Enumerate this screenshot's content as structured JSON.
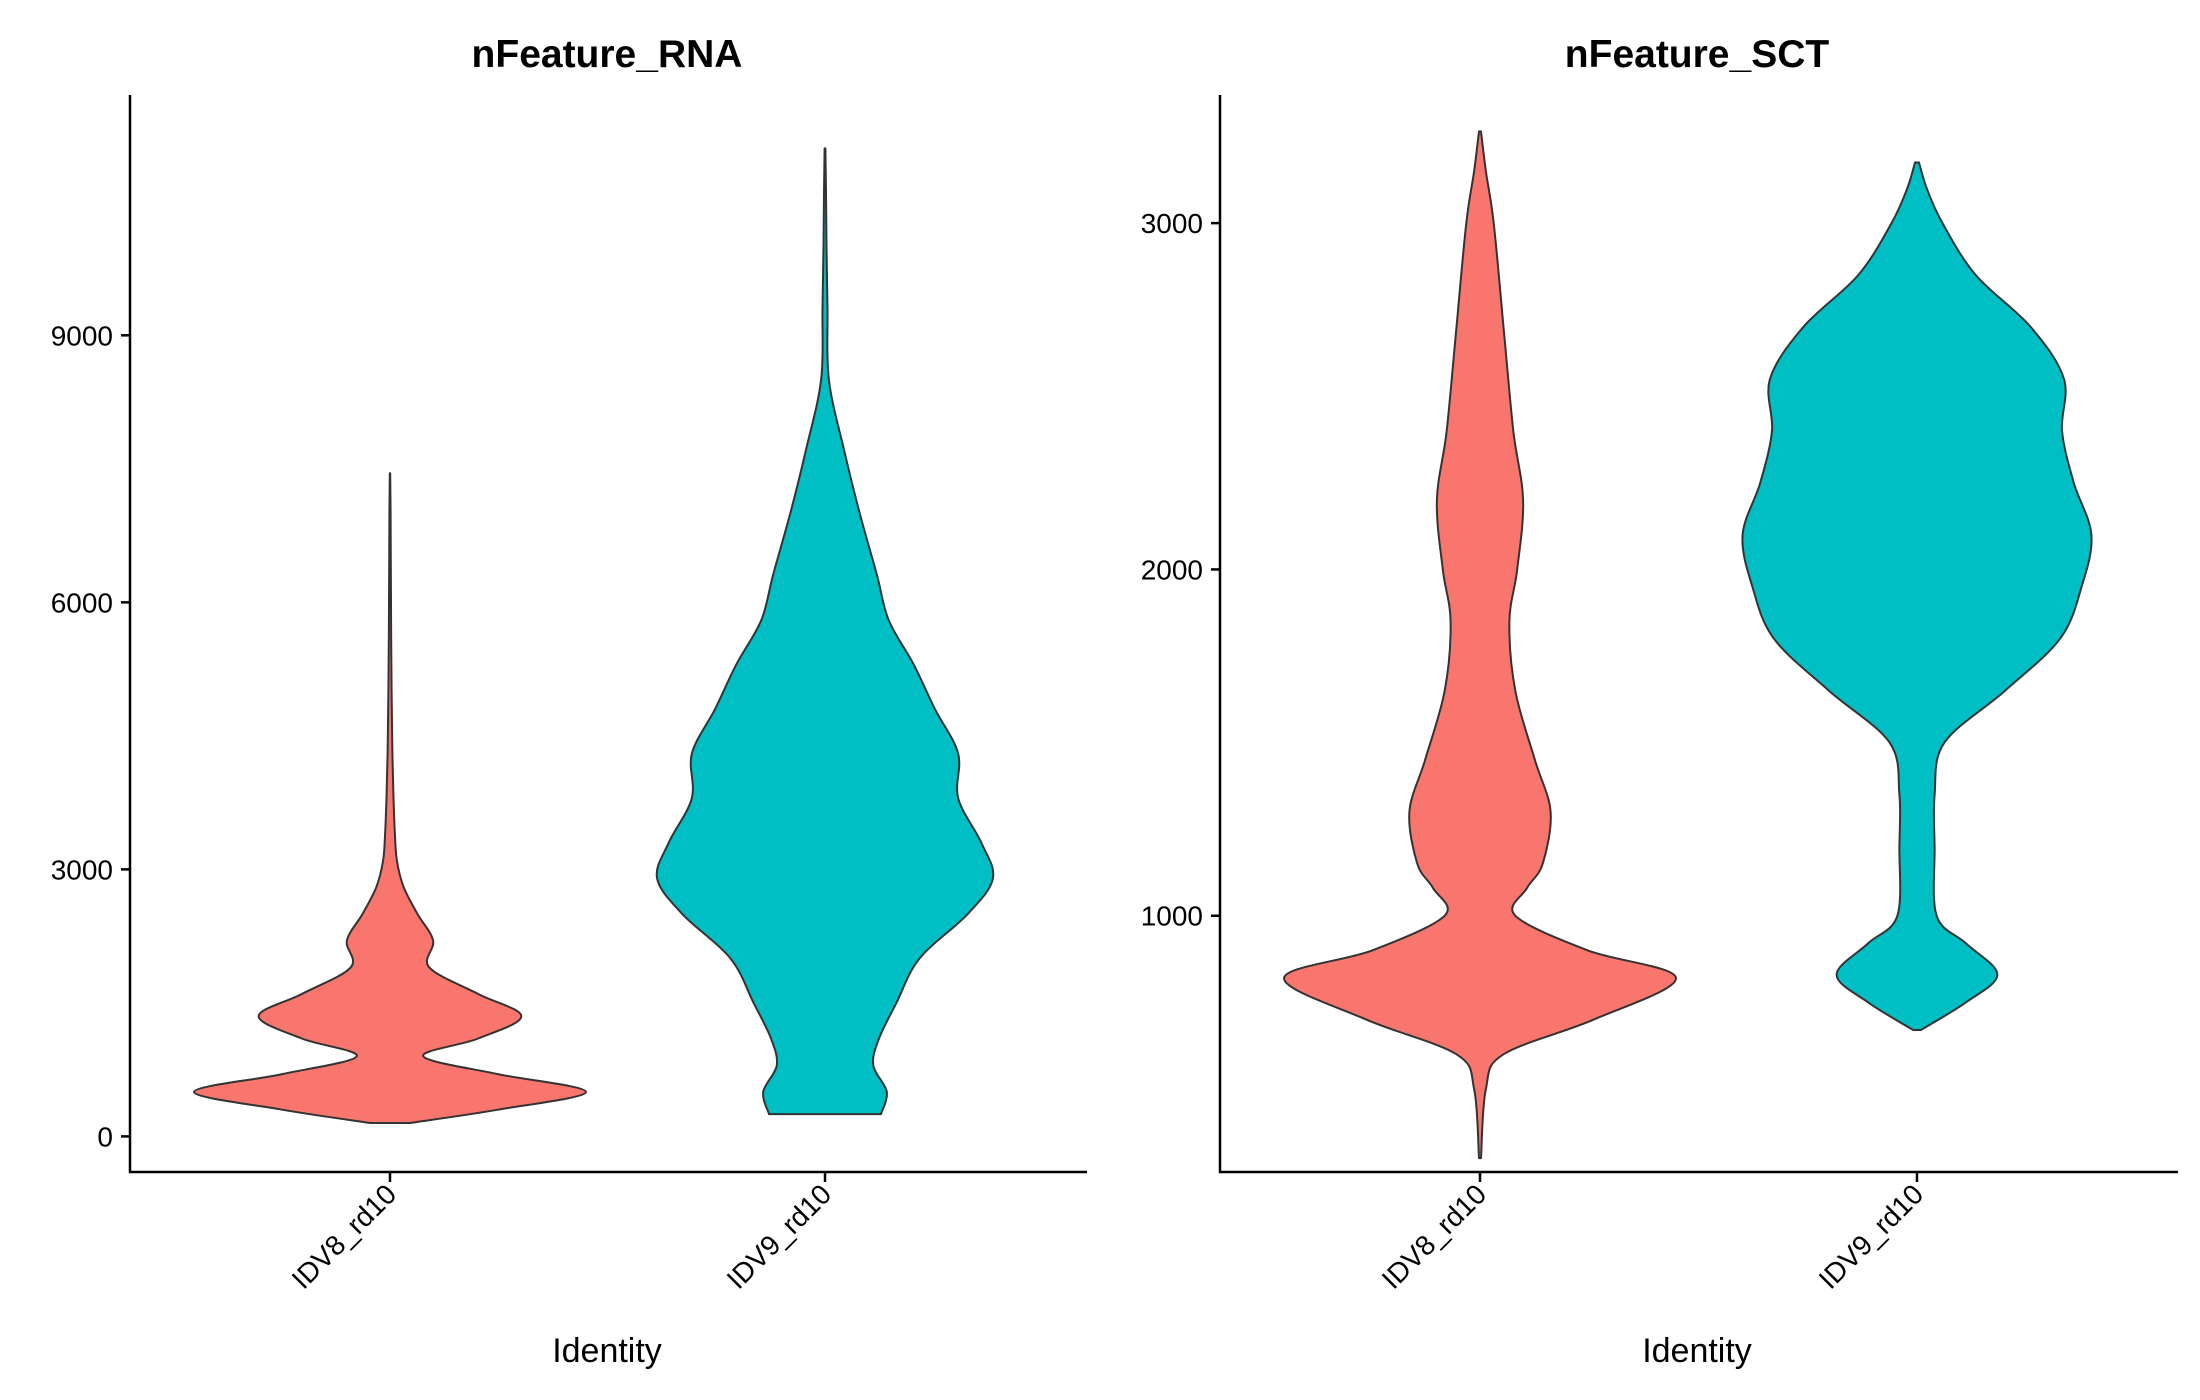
{
  "chart_data": [
    {
      "type": "violin",
      "title": "nFeature_RNA",
      "xlabel": "Identity",
      "ylabel": "",
      "ylim": [
        -400,
        11700
      ],
      "yticks": [
        0,
        3000,
        6000,
        9000
      ],
      "categories": [
        "IDV8_rd10",
        "IDV9_rd10"
      ],
      "grid": false,
      "legend": "none",
      "series": [
        {
          "category": "IDV8_rd10",
          "color": "#F8766D",
          "min": 150,
          "max": 7450,
          "density": [
            [
              150,
              0.1
            ],
            [
              300,
              0.55
            ],
            [
              500,
              1.0
            ],
            [
              700,
              0.55
            ],
            [
              900,
              0.17
            ],
            [
              1100,
              0.45
            ],
            [
              1350,
              0.67
            ],
            [
              1600,
              0.45
            ],
            [
              1900,
              0.2
            ],
            [
              2200,
              0.22
            ],
            [
              2500,
              0.14
            ],
            [
              2800,
              0.07
            ],
            [
              3100,
              0.035
            ],
            [
              3400,
              0.025
            ],
            [
              3800,
              0.018
            ],
            [
              4300,
              0.012
            ],
            [
              5000,
              0.008
            ],
            [
              6000,
              0.005
            ],
            [
              7000,
              0.003
            ],
            [
              7450,
              0.001
            ]
          ]
        },
        {
          "category": "IDV9_rd10",
          "color": "#00BFC4",
          "min": 250,
          "max": 11100,
          "density": [
            [
              250,
              0.29
            ],
            [
              500,
              0.32
            ],
            [
              800,
              0.25
            ],
            [
              1100,
              0.28
            ],
            [
              1500,
              0.37
            ],
            [
              2000,
              0.49
            ],
            [
              2500,
              0.74
            ],
            [
              2900,
              0.87
            ],
            [
              3300,
              0.81
            ],
            [
              3800,
              0.69
            ],
            [
              4300,
              0.69
            ],
            [
              4800,
              0.57
            ],
            [
              5300,
              0.46
            ],
            [
              5800,
              0.33
            ],
            [
              6300,
              0.27
            ],
            [
              7000,
              0.18
            ],
            [
              7700,
              0.1
            ],
            [
              8500,
              0.02
            ],
            [
              9300,
              0.013
            ],
            [
              10000,
              0.008
            ],
            [
              10600,
              0.005
            ],
            [
              11100,
              0.002
            ]
          ]
        }
      ]
    },
    {
      "type": "violin",
      "title": "nFeature_SCT",
      "xlabel": "Identity",
      "ylabel": "",
      "ylim": [
        260,
        3370
      ],
      "yticks": [
        1000,
        2000,
        3000
      ],
      "categories": [
        "IDV8_rd10",
        "IDV9_rd10"
      ],
      "grid": false,
      "legend": "none",
      "series": [
        {
          "category": "IDV8_rd10",
          "color": "#F8766D",
          "min": 300,
          "max": 3265,
          "density": [
            [
              300,
              0.005
            ],
            [
              500,
              0.03
            ],
            [
              600,
              0.12
            ],
            [
              700,
              0.58
            ],
            [
              820,
              1.0
            ],
            [
              900,
              0.55
            ],
            [
              1000,
              0.18
            ],
            [
              1080,
              0.24
            ],
            [
              1150,
              0.32
            ],
            [
              1300,
              0.36
            ],
            [
              1450,
              0.28
            ],
            [
              1650,
              0.18
            ],
            [
              1850,
              0.15
            ],
            [
              2000,
              0.19
            ],
            [
              2200,
              0.22
            ],
            [
              2400,
              0.17
            ],
            [
              2700,
              0.12
            ],
            [
              3000,
              0.07
            ],
            [
              3150,
              0.03
            ],
            [
              3265,
              0.005
            ]
          ]
        },
        {
          "category": "IDV9_rd10",
          "color": "#00BFC4",
          "min": 670,
          "max": 3175,
          "density": [
            [
              670,
              0.02
            ],
            [
              750,
              0.25
            ],
            [
              830,
              0.41
            ],
            [
              920,
              0.25
            ],
            [
              1000,
              0.1
            ],
            [
              1200,
              0.09
            ],
            [
              1350,
              0.09
            ],
            [
              1500,
              0.14
            ],
            [
              1650,
              0.45
            ],
            [
              1800,
              0.73
            ],
            [
              1950,
              0.84
            ],
            [
              2100,
              0.89
            ],
            [
              2250,
              0.8
            ],
            [
              2400,
              0.74
            ],
            [
              2550,
              0.75
            ],
            [
              2700,
              0.58
            ],
            [
              2850,
              0.3
            ],
            [
              3000,
              0.13
            ],
            [
              3100,
              0.05
            ],
            [
              3175,
              0.01
            ]
          ]
        }
      ]
    }
  ]
}
